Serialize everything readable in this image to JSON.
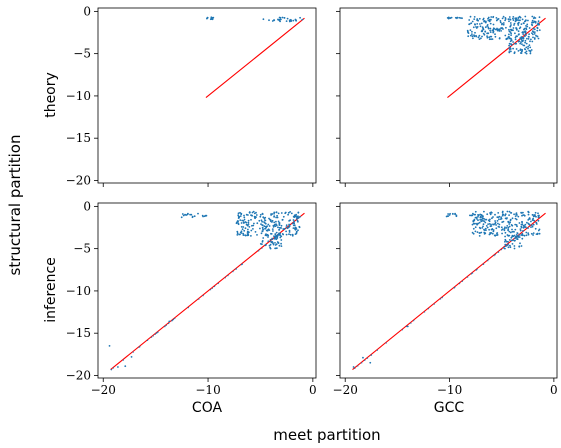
{
  "chart_data": {
    "type": "scatter",
    "super_xlabel": "meet partition",
    "super_ylabel": "structural partition",
    "row_labels": [
      "theory",
      "inference"
    ],
    "col_labels": [
      "COA",
      "GCC"
    ],
    "xlim": [
      -20.5,
      0.3
    ],
    "ylim": [
      -20.3,
      0.4
    ],
    "x_ticks": [
      -20,
      -10,
      0
    ],
    "x_tick_labels": [
      "−20",
      "−10",
      "0"
    ],
    "y_ticks": [
      0,
      -5,
      -10,
      -15,
      -20
    ],
    "y_tick_labels": [
      "0",
      "−5",
      "−10",
      "−15",
      "−20"
    ],
    "scatter_color": "#1f77b4",
    "line_color": "#ff0000",
    "panels": [
      {
        "row": "theory",
        "col": "COA",
        "reference_line": {
          "x": [
            -10.2,
            -0.8
          ],
          "y": [
            -10.2,
            -0.8
          ]
        },
        "clusters": [
          {
            "x": [
              -10.2,
              -9.4
            ],
            "y": [
              -1.0,
              -0.7
            ]
          },
          {
            "x": [
              -4.8,
              -0.9
            ],
            "y": [
              -1.2,
              -0.7
            ]
          }
        ]
      },
      {
        "row": "theory",
        "col": "GCC",
        "reference_line": {
          "x": [
            -10.2,
            -0.8
          ],
          "y": [
            -10.2,
            -0.8
          ]
        },
        "clusters": [
          {
            "x": [
              -10.2,
              -8.8
            ],
            "y": [
              -0.9,
              -0.7
            ]
          },
          {
            "x": [
              -8.3,
              -1.3
            ],
            "y": [
              -3.3,
              -0.6
            ]
          },
          {
            "x": [
              -4.3,
              -2.0
            ],
            "y": [
              -5.0,
              -3.0
            ]
          }
        ]
      },
      {
        "row": "inference",
        "col": "COA",
        "reference_line": {
          "x": [
            -19.3,
            -0.8
          ],
          "y": [
            -19.3,
            -0.8
          ]
        },
        "clusters": [
          {
            "x": [
              -12.7,
              -10.1
            ],
            "y": [
              -1.3,
              -0.8
            ]
          },
          {
            "x": [
              -7.3,
              -1.2
            ],
            "y": [
              -3.5,
              -0.6
            ]
          },
          {
            "x": [
              -5.0,
              -3.0
            ],
            "y": [
              -5.0,
              -3.2
            ]
          }
        ],
        "scattered_points": {
          "x": [
            -19.4,
            -18.6,
            -17.3,
            -13.7,
            -17.9
          ],
          "y": [
            -16.5,
            -19.0,
            -17.8,
            -13.6,
            -18.9
          ]
        }
      },
      {
        "row": "inference",
        "col": "GCC",
        "reference_line": {
          "x": [
            -19.3,
            -0.8
          ],
          "y": [
            -19.3,
            -0.8
          ]
        },
        "clusters": [
          {
            "x": [
              -10.6,
              -7.7
            ],
            "y": [
              -1.2,
              -0.8
            ]
          },
          {
            "x": [
              -7.8,
              -1.3
            ],
            "y": [
              -3.5,
              -0.6
            ]
          },
          {
            "x": [
              -4.8,
              -3.0
            ],
            "y": [
              -5.0,
              -3.5
            ]
          }
        ],
        "scattered_points": {
          "x": [
            -18.3,
            -17.6,
            -14.0,
            -19.2
          ],
          "y": [
            -17.9,
            -18.5,
            -14.2,
            -19.0
          ]
        }
      }
    ]
  }
}
